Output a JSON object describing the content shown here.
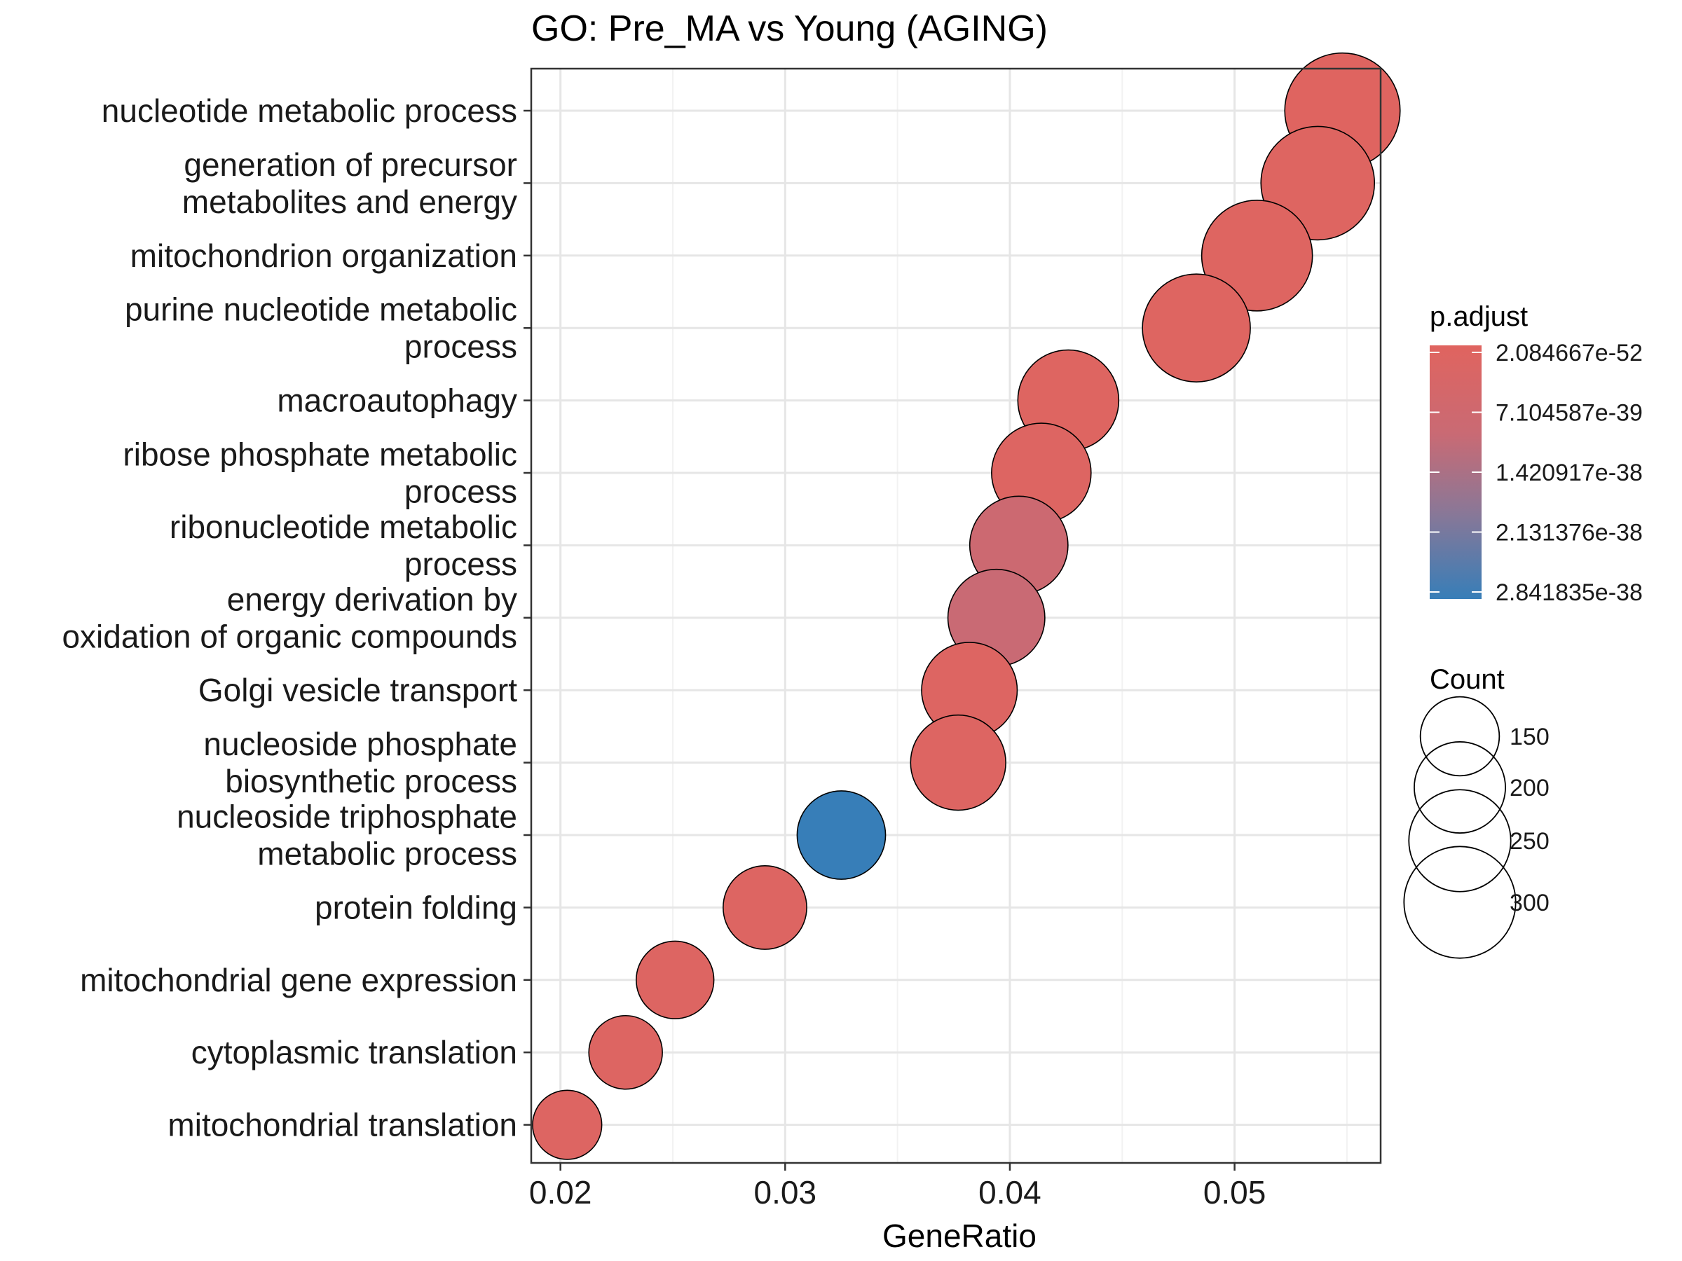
{
  "chart_data": {
    "type": "scatter",
    "title": "GO: Pre_MA vs Young (AGING)",
    "xlabel": "GeneRatio",
    "ylabel": "",
    "xlim": [
      0.0187,
      0.0565
    ],
    "x_ticks": [
      "0.02",
      "0.03",
      "0.04",
      "0.05"
    ],
    "x_tick_values": [
      0.02,
      0.03,
      0.04,
      0.05
    ],
    "grid": true,
    "legend_position": "right",
    "categories": [
      [
        "nucleotide metabolic process"
      ],
      [
        "generation of precursor",
        "metabolites and energy"
      ],
      [
        "mitochondrion organization"
      ],
      [
        "purine nucleotide metabolic",
        "process"
      ],
      [
        "macroautophagy"
      ],
      [
        "ribose phosphate metabolic",
        "process"
      ],
      [
        "ribonucleotide metabolic",
        "process"
      ],
      [
        "energy derivation by",
        "oxidation of organic compounds"
      ],
      [
        "Golgi vesicle transport"
      ],
      [
        "nucleoside phosphate",
        "biosynthetic process"
      ],
      [
        "nucleoside triphosphate",
        "metabolic process"
      ],
      [
        "protein folding"
      ],
      [
        "mitochondrial gene expression"
      ],
      [
        "cytoplasmic translation"
      ],
      [
        "mitochondrial translation"
      ]
    ],
    "points": [
      {
        "x": 0.0548,
        "count": 320,
        "p_adjust_frac": 0.02
      },
      {
        "x": 0.0537,
        "count": 310,
        "p_adjust_frac": 0.03
      },
      {
        "x": 0.051,
        "count": 295,
        "p_adjust_frac": 0.03
      },
      {
        "x": 0.0483,
        "count": 280,
        "p_adjust_frac": 0.03
      },
      {
        "x": 0.0426,
        "count": 245,
        "p_adjust_frac": 0.03
      },
      {
        "x": 0.0414,
        "count": 238,
        "p_adjust_frac": 0.05
      },
      {
        "x": 0.0404,
        "count": 232,
        "p_adjust_frac": 0.3
      },
      {
        "x": 0.0394,
        "count": 226,
        "p_adjust_frac": 0.35
      },
      {
        "x": 0.0382,
        "count": 220,
        "p_adjust_frac": 0.05
      },
      {
        "x": 0.0377,
        "count": 218,
        "p_adjust_frac": 0.05
      },
      {
        "x": 0.0325,
        "count": 188,
        "p_adjust_frac": 1.0
      },
      {
        "x": 0.0291,
        "count": 168,
        "p_adjust_frac": 0.05
      },
      {
        "x": 0.0251,
        "count": 145,
        "p_adjust_frac": 0.05
      },
      {
        "x": 0.0229,
        "count": 130,
        "p_adjust_frac": 0.05
      },
      {
        "x": 0.0203,
        "count": 115,
        "p_adjust_frac": 0.05
      }
    ],
    "color_legend": {
      "title": "p.adjust",
      "labels": [
        "2.084667e-52",
        "7.104587e-39",
        "1.420917e-38",
        "2.131376e-38",
        "2.841835e-38"
      ],
      "color_low": "#E0645F",
      "color_high": "#377EB8"
    },
    "size_legend": {
      "title": "Count",
      "labels": [
        "150",
        "200",
        "250",
        "300"
      ],
      "values": [
        150,
        200,
        250,
        300
      ]
    }
  }
}
